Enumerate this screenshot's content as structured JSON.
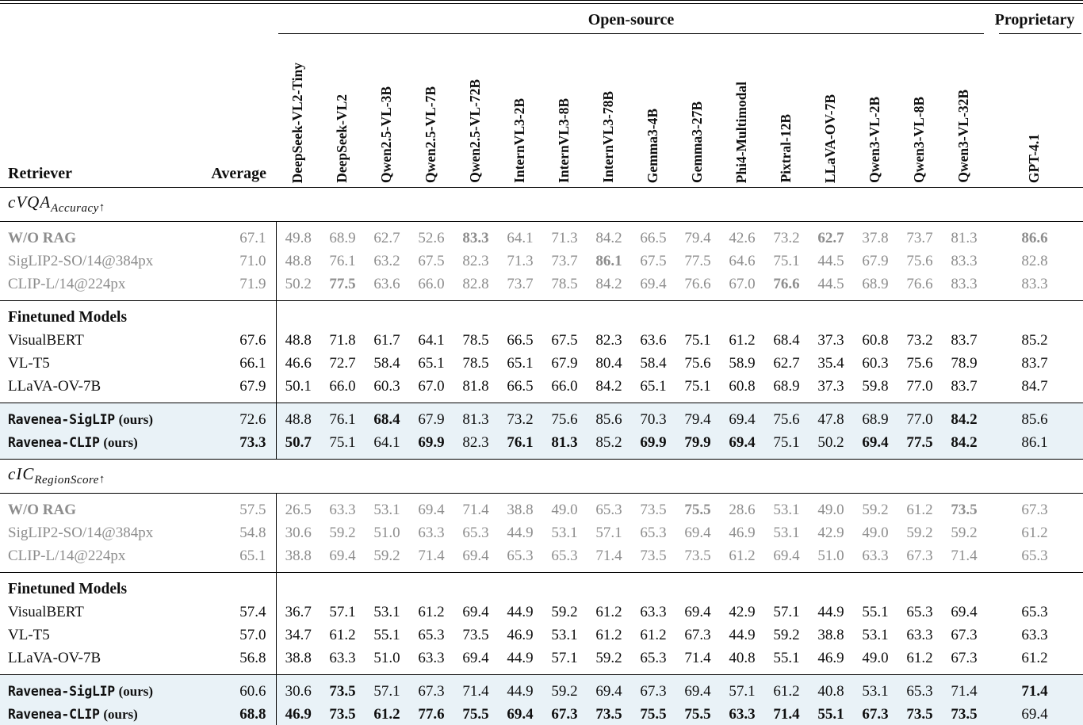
{
  "table": {
    "group_headers": {
      "open_source": "Open-source",
      "proprietary": "Proprietary"
    },
    "corner": {
      "retriever": "Retriever",
      "average": "Average"
    },
    "columns": [
      "DeepSeek-VL2-Tiny",
      "DeepSeek-VL2",
      "Qwen2.5-VL-3B",
      "Qwen2.5-VL-7B",
      "Qwen2.5-VL-72B",
      "InternVL3-2B",
      "InternVL3-8B",
      "InternVL3-78B",
      "Gemma3-4B",
      "Gemma3-27B",
      "Phi4-Multimodal",
      "Pixtral-12B",
      "LLaVA-OV-7B",
      "Qwen3-VL-2B",
      "Qwen3-VL-8B",
      "Qwen3-VL-32B"
    ],
    "proprietary_column": "GPT-4.1",
    "colors": {
      "muted_text": "#8d8d8d",
      "highlight_bg": "#e9f2f7",
      "rule": "#000000"
    },
    "sections": [
      {
        "heading": {
          "base": "cVQA",
          "sub": "Accuracy",
          "arrow": "↑"
        },
        "blocks": [
          {
            "style": "muted",
            "rows": [
              {
                "label": "W/O RAG",
                "label_bold": true,
                "avg": "67.1",
                "values": [
                  "49.8",
                  "68.9",
                  "62.7",
                  "52.6",
                  "83.3",
                  "64.1",
                  "71.3",
                  "84.2",
                  "66.5",
                  "79.4",
                  "42.6",
                  "73.2",
                  "62.7",
                  "37.8",
                  "73.7",
                  "81.3"
                ],
                "bold": [
                  4,
                  12
                ],
                "gpt": "86.6",
                "gpt_bold": true
              },
              {
                "label": "SigLIP2-SO/14@384px",
                "avg": "71.0",
                "values": [
                  "48.8",
                  "76.1",
                  "63.2",
                  "67.5",
                  "82.3",
                  "71.3",
                  "73.7",
                  "86.1",
                  "67.5",
                  "77.5",
                  "64.6",
                  "75.1",
                  "44.5",
                  "67.9",
                  "75.6",
                  "83.3"
                ],
                "bold": [
                  7
                ],
                "gpt": "82.8"
              },
              {
                "label": "CLIP-L/14@224px",
                "avg": "71.9",
                "values": [
                  "50.2",
                  "77.5",
                  "63.6",
                  "66.0",
                  "82.8",
                  "73.7",
                  "78.5",
                  "84.2",
                  "69.4",
                  "76.6",
                  "67.0",
                  "76.6",
                  "44.5",
                  "68.9",
                  "76.6",
                  "83.3"
                ],
                "bold": [
                  1,
                  11
                ],
                "gpt": "83.3"
              }
            ]
          },
          {
            "style": "normal",
            "title": "Finetuned Models",
            "rows": [
              {
                "label": "VisualBERT",
                "avg": "67.6",
                "values": [
                  "48.8",
                  "71.8",
                  "61.7",
                  "64.1",
                  "78.5",
                  "66.5",
                  "67.5",
                  "82.3",
                  "63.6",
                  "75.1",
                  "61.2",
                  "68.4",
                  "37.3",
                  "60.8",
                  "73.2",
                  "83.7"
                ],
                "gpt": "85.2"
              },
              {
                "label": "VL-T5",
                "avg": "66.1",
                "values": [
                  "46.6",
                  "72.7",
                  "58.4",
                  "65.1",
                  "78.5",
                  "65.1",
                  "67.9",
                  "80.4",
                  "58.4",
                  "75.6",
                  "58.9",
                  "62.7",
                  "35.4",
                  "60.3",
                  "75.6",
                  "78.9"
                ],
                "gpt": "83.7"
              },
              {
                "label": "LLaVA-OV-7B",
                "avg": "67.9",
                "values": [
                  "50.1",
                  "66.0",
                  "60.3",
                  "67.0",
                  "81.8",
                  "66.5",
                  "66.0",
                  "84.2",
                  "65.1",
                  "75.1",
                  "60.8",
                  "68.9",
                  "37.3",
                  "59.8",
                  "77.0",
                  "83.7"
                ],
                "gpt": "84.7"
              }
            ]
          },
          {
            "style": "highlight",
            "rows": [
              {
                "label": "Ravenea-SigLIP",
                "suffix": "(ours)",
                "mono": true,
                "avg": "72.6",
                "values": [
                  "48.8",
                  "76.1",
                  "68.4",
                  "67.9",
                  "81.3",
                  "73.2",
                  "75.6",
                  "85.6",
                  "70.3",
                  "79.4",
                  "69.4",
                  "75.6",
                  "47.8",
                  "68.9",
                  "77.0",
                  "84.2"
                ],
                "bold": [
                  2,
                  15
                ],
                "gpt": "85.6"
              },
              {
                "label": "Ravenea-CLIP",
                "suffix": "(ours)",
                "mono": true,
                "avg": "73.3",
                "avg_bold": true,
                "values": [
                  "50.7",
                  "75.1",
                  "64.1",
                  "69.9",
                  "82.3",
                  "76.1",
                  "81.3",
                  "85.2",
                  "69.9",
                  "79.9",
                  "69.4",
                  "75.1",
                  "50.2",
                  "69.4",
                  "77.5",
                  "84.2"
                ],
                "bold": [
                  0,
                  3,
                  5,
                  6,
                  8,
                  9,
                  10,
                  13,
                  14,
                  15
                ],
                "gpt": "86.1"
              }
            ]
          }
        ]
      },
      {
        "heading": {
          "base": "cIC",
          "sub": "RegionScore",
          "arrow": "↑"
        },
        "blocks": [
          {
            "style": "muted",
            "rows": [
              {
                "label": "W/O RAG",
                "label_bold": true,
                "avg": "57.5",
                "values": [
                  "26.5",
                  "63.3",
                  "53.1",
                  "69.4",
                  "71.4",
                  "38.8",
                  "49.0",
                  "65.3",
                  "73.5",
                  "75.5",
                  "28.6",
                  "53.1",
                  "49.0",
                  "59.2",
                  "61.2",
                  "73.5"
                ],
                "bold": [
                  9,
                  15
                ],
                "gpt": "67.3"
              },
              {
                "label": "SigLIP2-SO/14@384px",
                "avg": "54.8",
                "values": [
                  "30.6",
                  "59.2",
                  "51.0",
                  "63.3",
                  "65.3",
                  "44.9",
                  "53.1",
                  "57.1",
                  "65.3",
                  "69.4",
                  "46.9",
                  "53.1",
                  "42.9",
                  "49.0",
                  "59.2",
                  "59.2"
                ],
                "gpt": "61.2"
              },
              {
                "label": "CLIP-L/14@224px",
                "avg": "65.1",
                "values": [
                  "38.8",
                  "69.4",
                  "59.2",
                  "71.4",
                  "69.4",
                  "65.3",
                  "65.3",
                  "71.4",
                  "73.5",
                  "73.5",
                  "61.2",
                  "69.4",
                  "51.0",
                  "63.3",
                  "67.3",
                  "71.4"
                ],
                "gpt": "65.3"
              }
            ]
          },
          {
            "style": "normal",
            "title": "Finetuned Models",
            "rows": [
              {
                "label": "VisualBERT",
                "avg": "57.4",
                "values": [
                  "36.7",
                  "57.1",
                  "53.1",
                  "61.2",
                  "69.4",
                  "44.9",
                  "59.2",
                  "61.2",
                  "63.3",
                  "69.4",
                  "42.9",
                  "57.1",
                  "44.9",
                  "55.1",
                  "65.3",
                  "69.4"
                ],
                "gpt": "65.3"
              },
              {
                "label": "VL-T5",
                "avg": "57.0",
                "values": [
                  "34.7",
                  "61.2",
                  "55.1",
                  "65.3",
                  "73.5",
                  "46.9",
                  "53.1",
                  "61.2",
                  "61.2",
                  "67.3",
                  "44.9",
                  "59.2",
                  "38.8",
                  "53.1",
                  "63.3",
                  "67.3"
                ],
                "gpt": "63.3"
              },
              {
                "label": "LLaVA-OV-7B",
                "avg": "56.8",
                "values": [
                  "38.8",
                  "63.3",
                  "51.0",
                  "63.3",
                  "69.4",
                  "44.9",
                  "57.1",
                  "59.2",
                  "65.3",
                  "71.4",
                  "40.8",
                  "55.1",
                  "46.9",
                  "49.0",
                  "61.2",
                  "67.3"
                ],
                "gpt": "61.2"
              }
            ]
          },
          {
            "style": "highlight",
            "rows": [
              {
                "label": "Ravenea-SigLIP",
                "suffix": "(ours)",
                "mono": true,
                "avg": "60.6",
                "values": [
                  "30.6",
                  "73.5",
                  "57.1",
                  "67.3",
                  "71.4",
                  "44.9",
                  "59.2",
                  "69.4",
                  "67.3",
                  "69.4",
                  "57.1",
                  "61.2",
                  "40.8",
                  "53.1",
                  "65.3",
                  "71.4"
                ],
                "bold": [
                  1
                ],
                "gpt": "71.4",
                "gpt_bold": true
              },
              {
                "label": "Ravenea-CLIP",
                "suffix": "(ours)",
                "mono": true,
                "avg": "68.8",
                "avg_bold": true,
                "values": [
                  "46.9",
                  "73.5",
                  "61.2",
                  "77.6",
                  "75.5",
                  "69.4",
                  "67.3",
                  "73.5",
                  "75.5",
                  "75.5",
                  "63.3",
                  "71.4",
                  "55.1",
                  "67.3",
                  "73.5",
                  "73.5"
                ],
                "bold": [
                  0,
                  1,
                  2,
                  3,
                  4,
                  5,
                  6,
                  7,
                  8,
                  9,
                  10,
                  11,
                  12,
                  13,
                  14,
                  15
                ],
                "gpt": "69.4"
              }
            ]
          }
        ]
      }
    ]
  }
}
